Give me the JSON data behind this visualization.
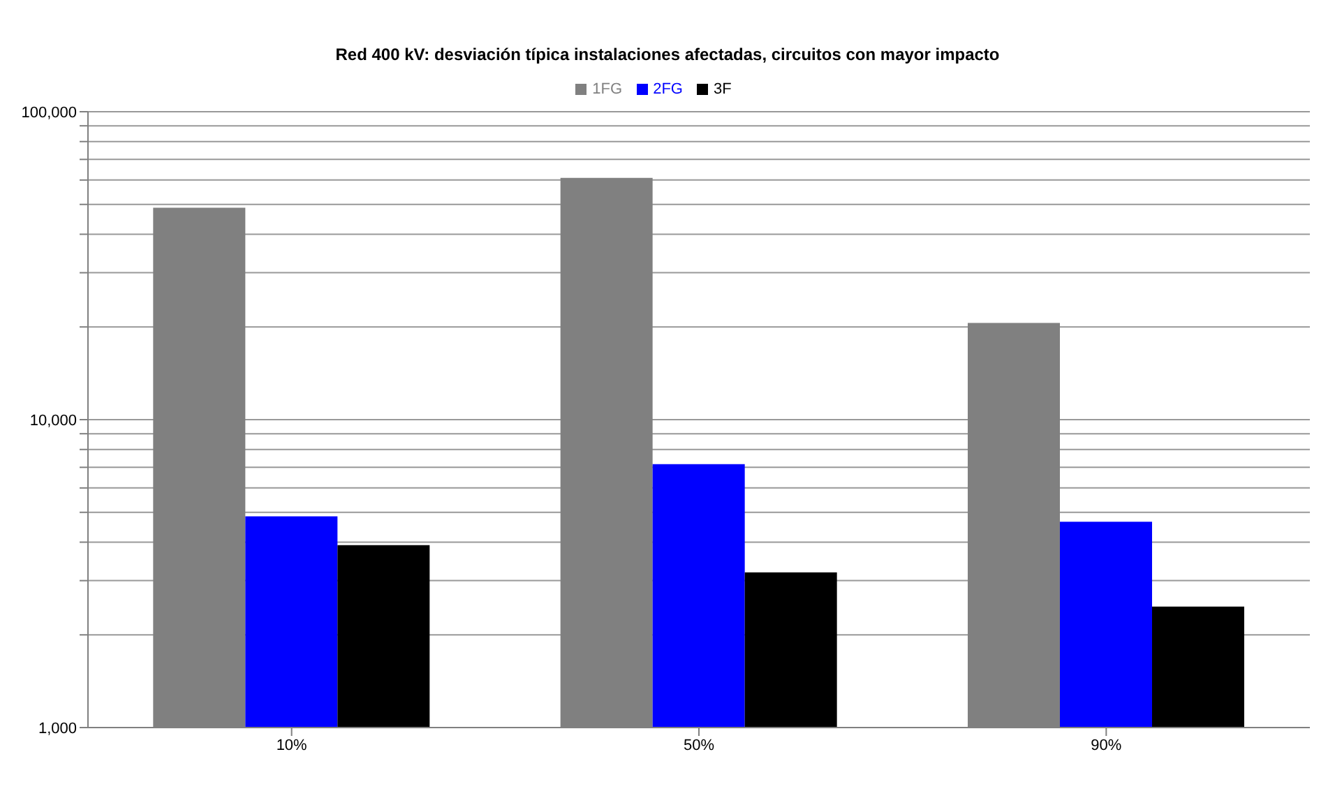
{
  "chart_data": {
    "type": "bar",
    "title": "Red 400 kV: desviación típica instalaciones afectadas, circuitos con mayor impacto",
    "categories": [
      "10%",
      "50%",
      "90%"
    ],
    "series": [
      {
        "name": "1FG",
        "color": "#808080",
        "values": [
          48800,
          61000,
          20600
        ]
      },
      {
        "name": "2FG",
        "color": "#0000ff",
        "values": [
          4850,
          7170,
          4660
        ]
      },
      {
        "name": "3F",
        "color": "#000000",
        "values": [
          3910,
          3190,
          2470
        ]
      }
    ],
    "log": true,
    "ylim": [
      1000,
      100000
    ],
    "yticks": [
      {
        "value": 1000,
        "label": "1,000"
      },
      {
        "value": 2000,
        "label": null
      },
      {
        "value": 3000,
        "label": null
      },
      {
        "value": 4000,
        "label": null
      },
      {
        "value": 5000,
        "label": null
      },
      {
        "value": 6000,
        "label": null
      },
      {
        "value": 7000,
        "label": null
      },
      {
        "value": 8000,
        "label": null
      },
      {
        "value": 9000,
        "label": null
      },
      {
        "value": 10000,
        "label": "10,000"
      },
      {
        "value": 20000,
        "label": null
      },
      {
        "value": 30000,
        "label": null
      },
      {
        "value": 40000,
        "label": null
      },
      {
        "value": 50000,
        "label": null
      },
      {
        "value": 60000,
        "label": null
      },
      {
        "value": 70000,
        "label": null
      },
      {
        "value": 80000,
        "label": null
      },
      {
        "value": 90000,
        "label": null
      },
      {
        "value": 100000,
        "label": "100,000"
      }
    ],
    "grid": "y",
    "legend": "top"
  }
}
